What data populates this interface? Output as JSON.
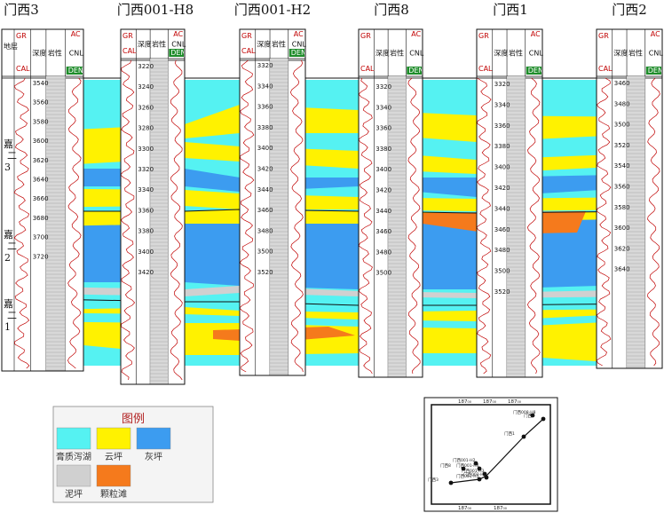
{
  "colors": {
    "lagoon": "#55f2f2",
    "cloud": "#fff200",
    "gray": "#3c9cf0",
    "mud": "#d0d0d0",
    "grain": "#f57a1c",
    "curve": "#c00000",
    "line": "#111111"
  },
  "header_labels": {
    "formation": "地层",
    "gr": "GR",
    "cal": "CAL",
    "depth": "深度",
    "lithology": "岩性",
    "ac": "AC",
    "cnl": "CNL",
    "den": "DEN"
  },
  "wells": [
    {
      "name": "门西3",
      "has_formation": true,
      "depths": [
        "3540",
        "3560",
        "3580",
        "3600",
        "3620",
        "3640",
        "3660",
        "3680",
        "3700",
        "3720"
      ]
    },
    {
      "name": "门西001-H8",
      "has_formation": false,
      "depths": [
        "3220",
        "3240",
        "3260",
        "3280",
        "3300",
        "3320",
        "3340",
        "3360",
        "3380",
        "3400",
        "3420"
      ]
    },
    {
      "name": "门西001-H2",
      "has_formation": false,
      "depths": [
        "3320",
        "3340",
        "3360",
        "3380",
        "3400",
        "3420",
        "3440",
        "3460",
        "3480",
        "3500",
        "3520"
      ]
    },
    {
      "name": "门西8",
      "has_formation": false,
      "depths": [
        "3320",
        "3340",
        "3360",
        "3380",
        "3400",
        "3420",
        "3440",
        "3460",
        "3480",
        "3500"
      ]
    },
    {
      "name": "门西1",
      "has_formation": false,
      "depths": [
        "3320",
        "3340",
        "3360",
        "3380",
        "3400",
        "3420",
        "3440",
        "3460",
        "3480",
        "3500",
        "3520"
      ]
    },
    {
      "name": "门西2",
      "has_formation": false,
      "depths": [
        "3460",
        "3480",
        "3500",
        "3520",
        "3540",
        "3560",
        "3580",
        "3600",
        "3620",
        "3640"
      ]
    }
  ],
  "formation_units": [
    {
      "main": "嘉",
      "sub": "二",
      "num": "3"
    },
    {
      "main": "嘉",
      "sub": "二",
      "num": "2"
    },
    {
      "main": "嘉",
      "sub": "二",
      "num": "1"
    }
  ],
  "legend": {
    "title": "图例",
    "items": [
      {
        "label": "膏质泻湖",
        "color_key": "lagoon"
      },
      {
        "label": "云坪",
        "color_key": "cloud"
      },
      {
        "label": "灰坪",
        "color_key": "gray"
      },
      {
        "label": "泥坪",
        "color_key": "mud"
      },
      {
        "label": "颗粒滩",
        "color_key": "grain"
      }
    ]
  },
  "location_map": {
    "tick_labels": [
      "187₀₀",
      "187₀₀",
      "187₀₀"
    ],
    "well_labels": [
      "门西008-H8",
      "门西2",
      "门西1",
      "门西001-H2",
      "门西001-H4",
      "门西001-H3",
      "门西8",
      "门西001-H1",
      "门西001-H5",
      "门西3"
    ]
  }
}
